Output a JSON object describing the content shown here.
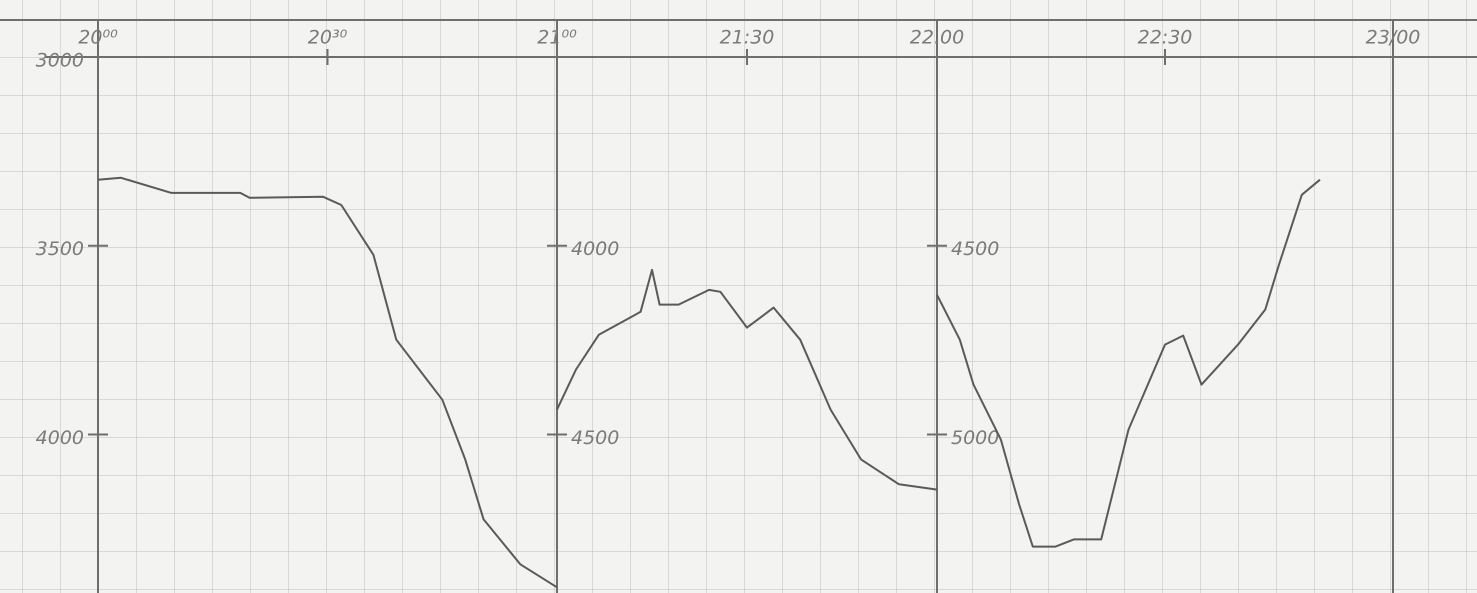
{
  "chart_data": [
    {
      "type": "line",
      "xlim": [
        20,
        21
      ],
      "ylim": [
        3000,
        4420
      ],
      "y_inverted": true,
      "xticks": [
        {
          "value": 20,
          "label": "20⁰⁰"
        },
        {
          "value": 20.5,
          "label": "20³⁰"
        },
        {
          "value": 21,
          "label": "21⁰⁰"
        }
      ],
      "yticks": [
        3000,
        3500,
        4000
      ],
      "x": [
        20.0,
        20.05,
        20.16,
        20.31,
        20.33,
        20.49,
        20.53,
        20.6,
        20.65,
        20.75,
        20.8,
        20.84,
        20.92,
        21.0
      ],
      "series": [
        {
          "color": "#5a5a5a",
          "values": [
            3325,
            3320,
            3360,
            3360,
            3373,
            3370,
            3392,
            3524,
            3749,
            3908,
            4066,
            4225,
            4344,
            4405
          ]
        }
      ]
    },
    {
      "type": "line",
      "xlim": [
        21,
        22
      ],
      "ylim": [
        3500,
        4920
      ],
      "y_inverted": true,
      "xticks": [
        {
          "value": 21.5,
          "label": "21:30"
        },
        {
          "value": 22,
          "label": "22.00"
        }
      ],
      "yticks": [
        4000,
        4500
      ],
      "x": [
        21.0,
        21.05,
        21.11,
        21.22,
        21.25,
        21.27,
        21.32,
        21.4,
        21.43,
        21.5,
        21.57,
        21.64,
        21.72,
        21.8,
        21.9,
        22.0
      ],
      "series": [
        {
          "color": "#5a5a5a",
          "values": [
            4434,
            4328,
            4236,
            4175,
            4064,
            4156,
            4156,
            4117,
            4122,
            4217,
            4164,
            4249,
            4434,
            4566,
            4632,
            4646
          ]
        }
      ]
    },
    {
      "type": "line",
      "xlim": [
        22,
        23
      ],
      "ylim": [
        4000,
        5420
      ],
      "y_inverted": true,
      "xticks": [
        {
          "value": 22.5,
          "label": "22:30"
        },
        {
          "value": 23,
          "label": "23/00"
        }
      ],
      "yticks": [
        4500,
        5000
      ],
      "x": [
        22.0,
        22.05,
        22.08,
        22.14,
        22.18,
        22.21,
        22.26,
        22.3,
        22.36,
        22.42,
        22.5,
        22.54,
        22.58,
        22.66,
        22.72,
        22.75,
        22.8,
        22.84
      ],
      "series": [
        {
          "color": "#5a5a5a",
          "values": [
            4630,
            4749,
            4868,
            5013,
            5185,
            5297,
            5297,
            5278,
            5278,
            4987,
            4762,
            4738,
            4868,
            4762,
            4669,
            4550,
            4365,
            4325
          ]
        }
      ]
    }
  ]
}
